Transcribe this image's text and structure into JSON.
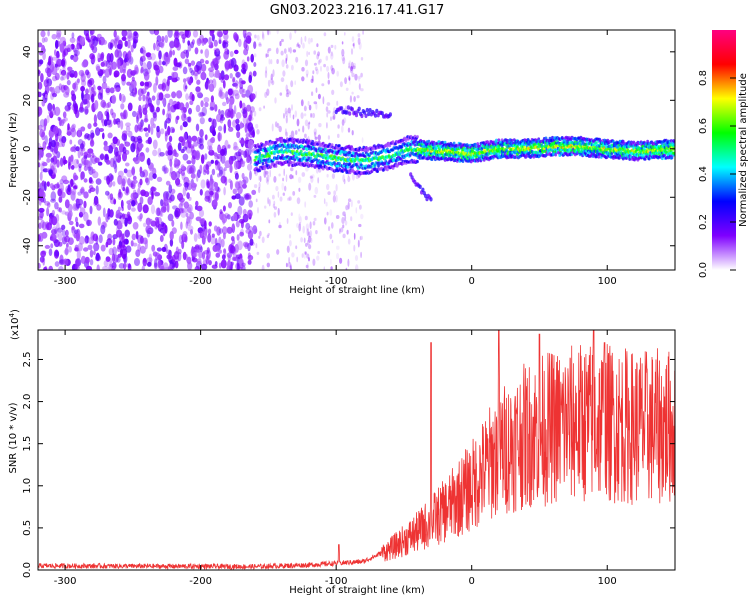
{
  "title": "GN03.2023.216.17.41.G17",
  "chart_data": [
    {
      "type": "heatmap",
      "xlabel": "Height of straight line (km)",
      "ylabel": "Frequency (Hz)",
      "xlim": [
        -320,
        150
      ],
      "ylim": [
        -50,
        49
      ],
      "xticks": [
        -300,
        -200,
        -100,
        0,
        100
      ],
      "yticks": [
        -40,
        -20,
        0,
        20,
        40
      ],
      "colorbar": {
        "label": "Normalized spectral amplitude",
        "range": [
          0,
          1
        ],
        "ticks": [
          "0.0",
          "0.2",
          "0.4",
          "0.6",
          "0.8"
        ],
        "colormap": [
          "#ffffff",
          "#7f00ff",
          "#0000ff",
          "#00ffff",
          "#00ff00",
          "#ffff00",
          "#ff0000",
          "#ff0080"
        ]
      },
      "features": {
        "noise_region_x": [
          -320,
          -160
        ],
        "sparse_region_x": [
          -160,
          -80
        ],
        "ridge": [
          {
            "x": -160,
            "y": -4
          },
          {
            "x": -140,
            "y": -1
          },
          {
            "x": -120,
            "y": -2
          },
          {
            "x": -100,
            "y": -4
          },
          {
            "x": -80,
            "y": -5
          },
          {
            "x": -60,
            "y": -3
          },
          {
            "x": -45,
            "y": 0
          },
          {
            "x": -20,
            "y": -1
          },
          {
            "x": 0,
            "y": -2
          },
          {
            "x": 20,
            "y": 0
          },
          {
            "x": 40,
            "y": 0
          },
          {
            "x": 60,
            "y": 1
          },
          {
            "x": 80,
            "y": 1
          },
          {
            "x": 100,
            "y": 0
          },
          {
            "x": 120,
            "y": -1
          },
          {
            "x": 150,
            "y": 0
          }
        ],
        "upper_branch": [
          {
            "x": -100,
            "y": 16
          },
          {
            "x": -80,
            "y": 15
          },
          {
            "x": -60,
            "y": 14
          }
        ],
        "lower_branch": [
          {
            "x": -45,
            "y": -12
          },
          {
            "x": -30,
            "y": -22
          }
        ]
      }
    },
    {
      "type": "line",
      "xlabel": "Height of straight line (km)",
      "ylabel": "SNR (10 * v/v)",
      "yscale_label": "(x10",
      "yscale_exp": "4",
      "yscale_close": ")",
      "xlim": [
        -320,
        150
      ],
      "ylim": [
        0,
        2.85
      ],
      "xticks": [
        -300,
        -200,
        -100,
        0,
        100
      ],
      "yticks": [
        "0.0",
        "0.5",
        "1.0",
        "1.5",
        "2.0",
        "2.5"
      ],
      "color": "#ee3333",
      "series_trend": [
        {
          "x": -320,
          "y": 0.05
        },
        {
          "x": -160,
          "y": 0.04
        },
        {
          "x": -120,
          "y": 0.06
        },
        {
          "x": -80,
          "y": 0.1
        },
        {
          "x": -60,
          "y": 0.25
        },
        {
          "x": -40,
          "y": 0.45
        },
        {
          "x": -20,
          "y": 0.7
        },
        {
          "x": 0,
          "y": 1.0
        },
        {
          "x": 20,
          "y": 1.4
        },
        {
          "x": 40,
          "y": 1.6
        },
        {
          "x": 60,
          "y": 1.7
        },
        {
          "x": 80,
          "y": 1.75
        },
        {
          "x": 100,
          "y": 1.75
        },
        {
          "x": 120,
          "y": 1.7
        },
        {
          "x": 150,
          "y": 1.7
        }
      ],
      "spikes": [
        {
          "x": -98,
          "y": 0.3
        },
        {
          "x": -30,
          "y": 2.7
        },
        {
          "x": 20,
          "y": 2.85
        },
        {
          "x": 50,
          "y": 2.8
        },
        {
          "x": 90,
          "y": 2.85
        },
        {
          "x": 98,
          "y": 2.7
        }
      ]
    }
  ]
}
